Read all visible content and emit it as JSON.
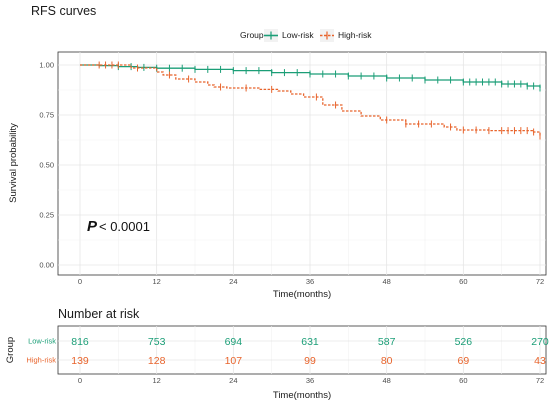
{
  "chart_data": [
    {
      "type": "line",
      "subtype": "kaplan-meier",
      "title": "RFS curves",
      "xlabel": "Time(months)",
      "ylabel": "Survival probability",
      "xlim": [
        0,
        72
      ],
      "ylim": [
        0,
        1
      ],
      "xticks": [
        "0",
        "12",
        "24",
        "36",
        "48",
        "60",
        "72"
      ],
      "yticks": [
        "0.00",
        "0.25",
        "0.50",
        "0.75",
        "1.00"
      ],
      "grid": true,
      "legend": {
        "title": "Group",
        "position": "top",
        "entries": [
          "Low-risk",
          "High-risk"
        ]
      },
      "annotation": {
        "p_symbol": "P",
        "p_text": " < 0.0001"
      },
      "series": [
        {
          "name": "Low-risk",
          "color": "#1b9e77",
          "line_style": "solid",
          "steps": [
            [
              0,
              1.0
            ],
            [
              3,
              0.997
            ],
            [
              6,
              0.992
            ],
            [
              9,
              0.988
            ],
            [
              12,
              0.984
            ],
            [
              18,
              0.978
            ],
            [
              24,
              0.972
            ],
            [
              30,
              0.962
            ],
            [
              36,
              0.955
            ],
            [
              42,
              0.945
            ],
            [
              48,
              0.935
            ],
            [
              54,
              0.925
            ],
            [
              60,
              0.915
            ],
            [
              66,
              0.905
            ],
            [
              70,
              0.895
            ],
            [
              72,
              0.885
            ]
          ],
          "censor_times": [
            6,
            8,
            10,
            12,
            14,
            16,
            18,
            20,
            22,
            24,
            26,
            28,
            30,
            32,
            34,
            36,
            38,
            40,
            42,
            44,
            46,
            48,
            50,
            52,
            54,
            56,
            58,
            60,
            61,
            62,
            63,
            64,
            65,
            66,
            67,
            68,
            69,
            70,
            71,
            72
          ]
        },
        {
          "name": "High-risk",
          "color": "#e8642c",
          "line_style": "dashed",
          "steps": [
            [
              0,
              1.0
            ],
            [
              8,
              0.985
            ],
            [
              12,
              0.965
            ],
            [
              13,
              0.95
            ],
            [
              15,
              0.93
            ],
            [
              18,
              0.915
            ],
            [
              20,
              0.9
            ],
            [
              21,
              0.89
            ],
            [
              23,
              0.885
            ],
            [
              28,
              0.878
            ],
            [
              31,
              0.87
            ],
            [
              33,
              0.855
            ],
            [
              35,
              0.84
            ],
            [
              38,
              0.8
            ],
            [
              41,
              0.77
            ],
            [
              44,
              0.745
            ],
            [
              47,
              0.725
            ],
            [
              51,
              0.705
            ],
            [
              57,
              0.69
            ],
            [
              59,
              0.675
            ],
            [
              64,
              0.672
            ],
            [
              71,
              0.665
            ],
            [
              72,
              0.645
            ]
          ],
          "censor_times": [
            3,
            4,
            5,
            6,
            9,
            14,
            17,
            22,
            26,
            30,
            37,
            40,
            48,
            51,
            53,
            55,
            58,
            60,
            62,
            64,
            66,
            67,
            68,
            69,
            70,
            71,
            72
          ]
        }
      ]
    },
    {
      "type": "table",
      "title": "Number at risk",
      "ylabel": "Group",
      "xlabel": "Time(months)",
      "xlim": [
        0,
        72
      ],
      "xticks": [
        "0",
        "12",
        "24",
        "36",
        "48",
        "60",
        "72"
      ],
      "grid": true,
      "rows": [
        {
          "name": "Low-risk",
          "color": "#1b9e77",
          "values": [
            "816",
            "753",
            "694",
            "631",
            "587",
            "526",
            "270"
          ]
        },
        {
          "name": "High-risk",
          "color": "#e8642c",
          "values": [
            "139",
            "128",
            "107",
            "99",
            "80",
            "69",
            "43"
          ]
        }
      ]
    }
  ]
}
